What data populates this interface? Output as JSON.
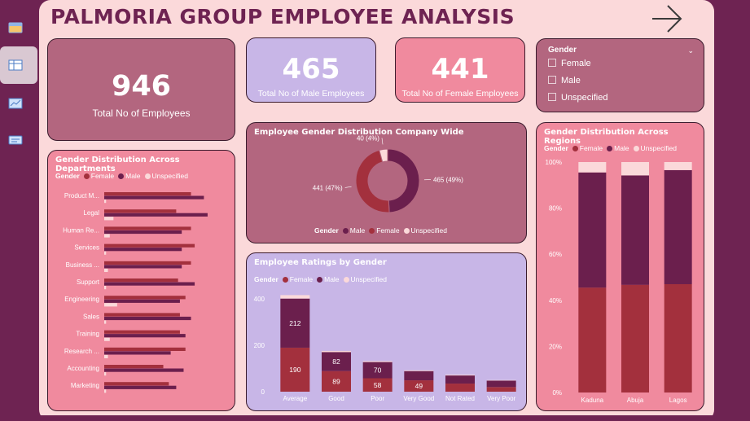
{
  "page": {
    "title": "PALMORIA GROUP EMPLOYEE ANALYSIS"
  },
  "colors": {
    "female": "#a3303d",
    "male": "#6b1f4d",
    "unspecified": "#fbd9da",
    "accent": "#6e2352"
  },
  "kpis": {
    "total": {
      "value": "946",
      "label": "Total No of Employees"
    },
    "male": {
      "value": "465",
      "label": "Total No of Male Employees"
    },
    "female": {
      "value": "441",
      "label": "Total No of Female Employees"
    }
  },
  "slicer": {
    "title": "Gender",
    "options": [
      "Female",
      "Male",
      "Unspecified"
    ]
  },
  "legend": {
    "label": "Gender",
    "female": "Female",
    "male": "Male",
    "unspecified": "Unspecified"
  },
  "chart_data": [
    {
      "type": "bar",
      "title": "Gender Distribution Across Departments",
      "orientation": "horizontal",
      "categories": [
        "Product M...",
        "Legal",
        "Human Re...",
        "Services",
        "Business ...",
        "Support",
        "Engineering",
        "Sales",
        "Training",
        "Research ...",
        "Accounting",
        "Marketing"
      ],
      "series": [
        {
          "name": "Female",
          "values": [
            47,
            39,
            47,
            49,
            47,
            40,
            44,
            41,
            41,
            44,
            32,
            35
          ]
        },
        {
          "name": "Male",
          "values": [
            54,
            56,
            42,
            42,
            42,
            49,
            41,
            47,
            44,
            36,
            43,
            39
          ]
        },
        {
          "name": "Unspecified",
          "values": [
            1,
            5,
            3,
            1,
            2,
            1,
            7,
            1,
            3,
            2,
            1,
            1
          ]
        }
      ],
      "xlim": [
        0,
        60
      ]
    },
    {
      "type": "pie",
      "title": "Employee Gender Distribution Company Wide",
      "donut": true,
      "slices": [
        {
          "name": "Male",
          "value": 465,
          "label": "465 (49%)"
        },
        {
          "name": "Female",
          "value": 441,
          "label": "441 (47%)"
        },
        {
          "name": "Unspecified",
          "value": 40,
          "label": "40 (4%)"
        }
      ],
      "legend_order": [
        "Male",
        "Female",
        "Unspecified"
      ]
    },
    {
      "type": "bar",
      "title": "Employee Ratings by Gender",
      "stacked": true,
      "categories": [
        "Average",
        "Good",
        "Poor",
        "Very Good",
        "Not Rated",
        "Very Poor"
      ],
      "series": [
        {
          "name": "Female",
          "values": [
            190,
            89,
            58,
            49,
            35,
            20
          ]
        },
        {
          "name": "Male",
          "values": [
            212,
            82,
            70,
            40,
            35,
            28
          ]
        },
        {
          "name": "Unspecified",
          "values": [
            15,
            5,
            4,
            3,
            3,
            2
          ]
        }
      ],
      "data_labels": {
        "Female": [
          "190",
          "89",
          "58",
          "49",
          "",
          ""
        ],
        "Male": [
          "212",
          "82",
          "70",
          "",
          "",
          ""
        ]
      },
      "ylim": [
        0,
        450
      ],
      "yticks": [
        "0",
        "200",
        "400"
      ],
      "ytick_values": [
        0,
        200,
        400
      ]
    },
    {
      "type": "bar",
      "title": "Gender Distribution Across Regions",
      "stacked": true,
      "percent": true,
      "categories": [
        "Kaduna",
        "Abuja",
        "Lagos"
      ],
      "series": [
        {
          "name": "Female",
          "values": [
            45.5,
            46.7,
            47
          ]
        },
        {
          "name": "Male",
          "values": [
            50,
            47.5,
            49.5
          ]
        },
        {
          "name": "Unspecified",
          "values": [
            4.5,
            5.8,
            3.5
          ]
        }
      ],
      "yticks": [
        "0%",
        "20%",
        "40%",
        "60%",
        "80%",
        "100%"
      ],
      "ylim": [
        0,
        100
      ]
    }
  ]
}
